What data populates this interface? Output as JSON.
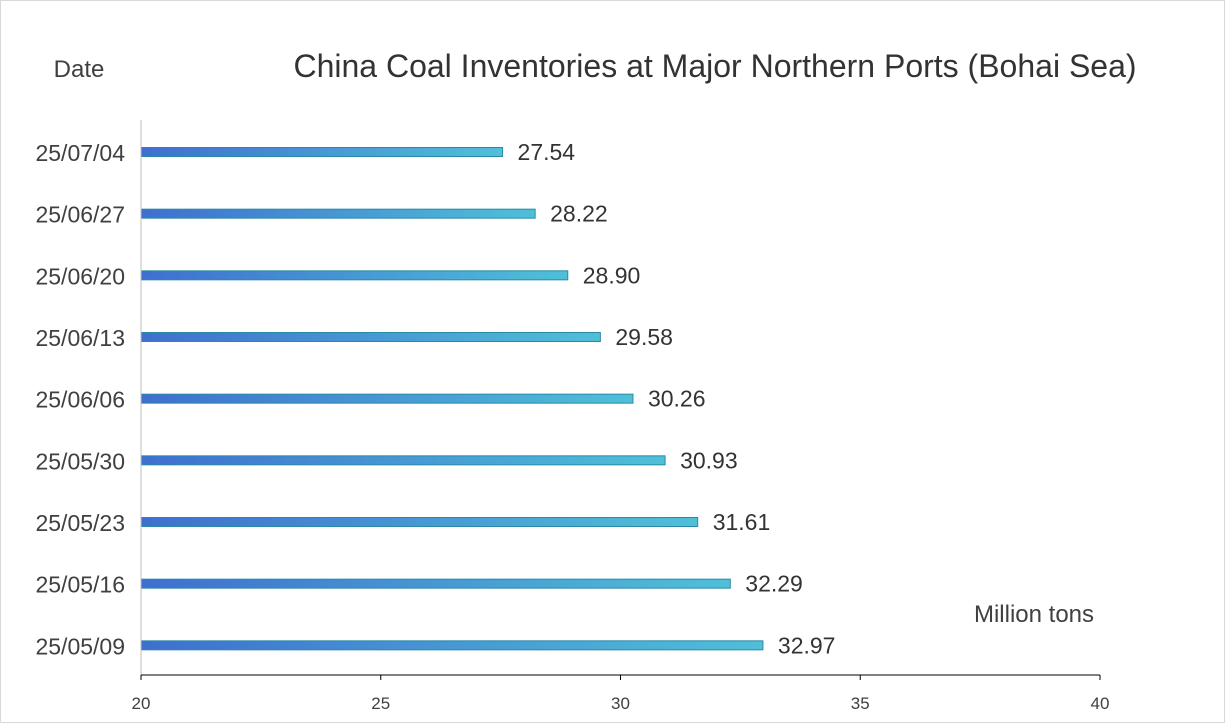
{
  "chart_data": {
    "type": "bar",
    "orientation": "horizontal",
    "title": "China Coal Inventories at Major Northern Ports (Bohai Sea)",
    "ylabel": "Date",
    "unit_label": "Million tons",
    "categories": [
      "25/07/04",
      "25/06/27",
      "25/06/20",
      "25/06/13",
      "25/06/06",
      "25/05/30",
      "25/05/23",
      "25/05/16",
      "25/05/09"
    ],
    "values": [
      27.54,
      28.22,
      28.9,
      29.58,
      30.26,
      30.93,
      31.61,
      32.29,
      32.97
    ],
    "value_labels": [
      "27.54",
      "28.22",
      "28.90",
      "29.58",
      "30.26",
      "30.93",
      "31.61",
      "32.29",
      "32.97"
    ],
    "xlim": [
      20,
      40
    ],
    "xticks": [
      "20",
      "25",
      "30",
      "35",
      "40"
    ],
    "grid": false,
    "colors": {
      "bar_start": "#3f6fcf",
      "bar_end": "#4fc0d8",
      "bar_stroke": "#2a8aa6",
      "axis": "#bfbfbf"
    }
  }
}
